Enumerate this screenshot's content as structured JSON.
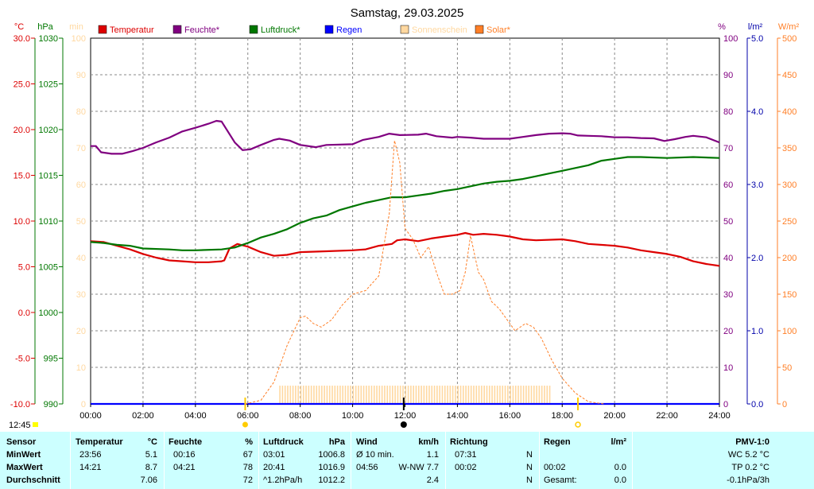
{
  "title": "Samstag, 29.03.2025",
  "current_time": "12:45",
  "legend": [
    {
      "label": "Temperatur",
      "color": "#dd0000"
    },
    {
      "label": "Feuchte*",
      "color": "#800080"
    },
    {
      "label": "Luftdruck*",
      "color": "#007700"
    },
    {
      "label": "Regen",
      "color": "#0000ff"
    },
    {
      "label": "Sonnenschein",
      "color": "#ffd8a0"
    },
    {
      "label": "Solar*",
      "color": "#ff7f27"
    }
  ],
  "axes": {
    "temp": {
      "unit": "°C",
      "color": "#dd0000",
      "ticks": [
        "30.0",
        "25.0",
        "20.0",
        "15.0",
        "10.0",
        "5.0",
        "0.0",
        "-5.0",
        "-10.0"
      ]
    },
    "pressure": {
      "unit": "hPa",
      "color": "#007700",
      "ticks": [
        "1030",
        "1025",
        "1020",
        "1015",
        "1010",
        "1005",
        "1000",
        "995",
        "990"
      ]
    },
    "sunshine": {
      "unit": "min",
      "color": "#ffd8a0",
      "ticks": [
        "100",
        "90",
        "80",
        "70",
        "60",
        "50",
        "40",
        "30",
        "20",
        "10",
        "0"
      ]
    },
    "humidity": {
      "unit": "%",
      "color": "#800080",
      "ticks": [
        "100",
        "90",
        "80",
        "70",
        "60",
        "50",
        "40",
        "30",
        "20",
        "10",
        "0"
      ]
    },
    "rain": {
      "unit": "l/m²",
      "color": "#0000aa",
      "ticks": [
        "5.0",
        "4.0",
        "3.0",
        "2.0",
        "1.0",
        "0.0"
      ]
    },
    "solar": {
      "unit": "W/m²",
      "color": "#ff7f27",
      "ticks": [
        "500",
        "450",
        "400",
        "350",
        "300",
        "250",
        "200",
        "150",
        "100",
        "50",
        "0"
      ]
    },
    "time_ticks": [
      "00:00",
      "02:00",
      "04:00",
      "06:00",
      "08:00",
      "10:00",
      "12:00",
      "14:00",
      "16:00",
      "18:00",
      "20:00",
      "22:00",
      "24:00"
    ]
  },
  "chart_data": {
    "type": "line",
    "title": "Samstag, 29.03.2025",
    "x_unit": "hours",
    "xlim": [
      0,
      24
    ],
    "sunrise_marker": 5.9,
    "noon_marker": 11.95,
    "sunset_marker": 18.6,
    "grid": true,
    "legend_position": "top",
    "series": [
      {
        "name": "Temperatur",
        "axis": "temp",
        "ylim": [
          -10,
          30
        ],
        "color": "#dd0000",
        "points": [
          [
            0,
            7.8
          ],
          [
            0.5,
            7.7
          ],
          [
            1,
            7.3
          ],
          [
            1.5,
            6.9
          ],
          [
            2,
            6.4
          ],
          [
            2.5,
            6.0
          ],
          [
            3,
            5.7
          ],
          [
            3.5,
            5.6
          ],
          [
            4,
            5.5
          ],
          [
            4.5,
            5.5
          ],
          [
            5,
            5.6
          ],
          [
            5.1,
            5.7
          ],
          [
            5.3,
            7.0
          ],
          [
            5.6,
            7.5
          ],
          [
            6,
            7.2
          ],
          [
            6.5,
            6.6
          ],
          [
            7,
            6.2
          ],
          [
            7.5,
            6.3
          ],
          [
            8,
            6.6
          ],
          [
            9,
            6.7
          ],
          [
            10,
            6.8
          ],
          [
            10.5,
            6.9
          ],
          [
            11,
            7.3
          ],
          [
            11.5,
            7.5
          ],
          [
            11.7,
            7.9
          ],
          [
            12,
            8.0
          ],
          [
            12.5,
            7.8
          ],
          [
            13,
            8.1
          ],
          [
            13.5,
            8.3
          ],
          [
            14,
            8.5
          ],
          [
            14.3,
            8.7
          ],
          [
            14.6,
            8.5
          ],
          [
            15,
            8.6
          ],
          [
            15.5,
            8.5
          ],
          [
            16,
            8.3
          ],
          [
            16.5,
            8.0
          ],
          [
            17,
            7.9
          ],
          [
            18,
            8.0
          ],
          [
            18.5,
            7.8
          ],
          [
            19,
            7.5
          ],
          [
            20,
            7.3
          ],
          [
            20.5,
            7.1
          ],
          [
            21,
            6.8
          ],
          [
            21.5,
            6.6
          ],
          [
            22,
            6.4
          ],
          [
            22.5,
            6.1
          ],
          [
            23,
            5.6
          ],
          [
            23.5,
            5.3
          ],
          [
            24,
            5.1
          ]
        ]
      },
      {
        "name": "Feuchte*",
        "axis": "humidity",
        "ylim": [
          0,
          100
        ],
        "color": "#800080",
        "points": [
          [
            0,
            70.5
          ],
          [
            0.2,
            70.5
          ],
          [
            0.4,
            68.8
          ],
          [
            0.8,
            68.4
          ],
          [
            1.2,
            68.4
          ],
          [
            1.6,
            69.1
          ],
          [
            2,
            70.0
          ],
          [
            2.5,
            71.5
          ],
          [
            3,
            72.8
          ],
          [
            3.5,
            74.5
          ],
          [
            4,
            75.5
          ],
          [
            4.5,
            76.6
          ],
          [
            4.8,
            77.4
          ],
          [
            5,
            77.2
          ],
          [
            5.5,
            71.5
          ],
          [
            5.8,
            69.4
          ],
          [
            6.1,
            69.6
          ],
          [
            6.5,
            70.8
          ],
          [
            7,
            72.2
          ],
          [
            7.2,
            72.5
          ],
          [
            7.6,
            72.0
          ],
          [
            8,
            70.8
          ],
          [
            8.6,
            70.2
          ],
          [
            9,
            70.8
          ],
          [
            10,
            71.0
          ],
          [
            10.4,
            72.2
          ],
          [
            11,
            73.0
          ],
          [
            11.4,
            73.9
          ],
          [
            11.8,
            73.5
          ],
          [
            12.5,
            73.6
          ],
          [
            12.8,
            73.9
          ],
          [
            13.2,
            73.2
          ],
          [
            13.8,
            72.8
          ],
          [
            14,
            73.0
          ],
          [
            14.5,
            72.8
          ],
          [
            15,
            72.5
          ],
          [
            15.5,
            72.5
          ],
          [
            16,
            72.5
          ],
          [
            16.5,
            73.0
          ],
          [
            17,
            73.5
          ],
          [
            17.5,
            73.9
          ],
          [
            18,
            74.0
          ],
          [
            18.3,
            73.9
          ],
          [
            18.6,
            73.4
          ],
          [
            19,
            73.3
          ],
          [
            19.5,
            73.2
          ],
          [
            20,
            72.9
          ],
          [
            20.5,
            72.9
          ],
          [
            21,
            72.7
          ],
          [
            21.5,
            72.6
          ],
          [
            21.9,
            71.9
          ],
          [
            22.3,
            72.4
          ],
          [
            22.7,
            73.0
          ],
          [
            23,
            73.3
          ],
          [
            23.5,
            72.9
          ],
          [
            24,
            71.5
          ]
        ]
      },
      {
        "name": "Luftdruck*",
        "axis": "pressure",
        "ylim": [
          990,
          1030
        ],
        "color": "#007700",
        "points": [
          [
            0,
            1007.7
          ],
          [
            0.5,
            1007.6
          ],
          [
            1,
            1007.4
          ],
          [
            1.5,
            1007.3
          ],
          [
            2,
            1007.0
          ],
          [
            3,
            1006.9
          ],
          [
            3.5,
            1006.8
          ],
          [
            4,
            1006.8
          ],
          [
            5,
            1006.9
          ],
          [
            5.5,
            1007.1
          ],
          [
            6,
            1007.6
          ],
          [
            6.5,
            1008.2
          ],
          [
            7,
            1008.6
          ],
          [
            7.5,
            1009.1
          ],
          [
            8,
            1009.8
          ],
          [
            8.5,
            1010.3
          ],
          [
            9,
            1010.6
          ],
          [
            9.5,
            1011.2
          ],
          [
            10,
            1011.6
          ],
          [
            10.5,
            1012.0
          ],
          [
            11,
            1012.3
          ],
          [
            11.5,
            1012.6
          ],
          [
            12,
            1012.6
          ],
          [
            12.5,
            1012.8
          ],
          [
            13,
            1013.0
          ],
          [
            13.5,
            1013.3
          ],
          [
            14,
            1013.5
          ],
          [
            14.5,
            1013.8
          ],
          [
            15,
            1014.1
          ],
          [
            15.5,
            1014.3
          ],
          [
            16,
            1014.4
          ],
          [
            16.5,
            1014.6
          ],
          [
            17,
            1014.9
          ],
          [
            17.5,
            1015.2
          ],
          [
            18,
            1015.5
          ],
          [
            18.5,
            1015.8
          ],
          [
            19,
            1016.1
          ],
          [
            19.5,
            1016.6
          ],
          [
            20,
            1016.8
          ],
          [
            20.5,
            1017.0
          ],
          [
            21,
            1017.0
          ],
          [
            22,
            1016.9
          ],
          [
            23,
            1017.0
          ],
          [
            24,
            1016.9
          ]
        ]
      },
      {
        "name": "Regen",
        "axis": "rain",
        "ylim": [
          0,
          5
        ],
        "color": "#0000ff",
        "points": [
          [
            0,
            0
          ],
          [
            24,
            0
          ]
        ]
      },
      {
        "name": "Sonnenschein",
        "axis": "sunshine",
        "ylim": [
          0,
          100
        ],
        "color": "#ffd8a0",
        "bars": {
          "from": 7.2,
          "to": 17.5,
          "value": 5
        }
      },
      {
        "name": "Solar*",
        "axis": "solar",
        "ylim": [
          0,
          500
        ],
        "color": "#ff7f27",
        "dashed": true,
        "points": [
          [
            5.9,
            0
          ],
          [
            6.5,
            5
          ],
          [
            7,
            30
          ],
          [
            7.5,
            80
          ],
          [
            8,
            118
          ],
          [
            8.2,
            120
          ],
          [
            8.5,
            110
          ],
          [
            8.8,
            105
          ],
          [
            9.2,
            115
          ],
          [
            9.6,
            135
          ],
          [
            10,
            150
          ],
          [
            10.5,
            155
          ],
          [
            11,
            175
          ],
          [
            11.4,
            260
          ],
          [
            11.6,
            360
          ],
          [
            11.8,
            330
          ],
          [
            12,
            240
          ],
          [
            12.3,
            225
          ],
          [
            12.6,
            200
          ],
          [
            12.9,
            215
          ],
          [
            13.2,
            180
          ],
          [
            13.5,
            150
          ],
          [
            13.8,
            150
          ],
          [
            14.1,
            155
          ],
          [
            14.3,
            180
          ],
          [
            14.5,
            230
          ],
          [
            14.8,
            180
          ],
          [
            15,
            170
          ],
          [
            15.3,
            140
          ],
          [
            15.6,
            130
          ],
          [
            16,
            110
          ],
          [
            16.2,
            100
          ],
          [
            16.6,
            110
          ],
          [
            16.9,
            105
          ],
          [
            17.2,
            90
          ],
          [
            17.6,
            60
          ],
          [
            18,
            35
          ],
          [
            18.5,
            15
          ],
          [
            19,
            3
          ],
          [
            19.6,
            0
          ]
        ]
      }
    ]
  },
  "stats": {
    "headers": {
      "sensor": "Sensor",
      "temp": "Temperatur",
      "temp_unit": "°C",
      "hum": "Feuchte",
      "hum_unit": "%",
      "press": "Luftdruck",
      "press_unit": "hPa",
      "wind": "Wind",
      "wind_unit": "km/h",
      "dir": "Richtung",
      "rain": "Regen",
      "rain_unit": "l/m²",
      "pmv": "PMV-1:0"
    },
    "rows": [
      {
        "label": "MinWert",
        "temp_time": "23:56",
        "temp_val": "5.1",
        "hum_time": "00:16",
        "hum_val": "67",
        "press_time": "03:01",
        "press_val": "1006.8",
        "wind_time": "Ø 10 min.",
        "wind_val": "1.1",
        "dir_time": "07:31",
        "dir_val": "N",
        "rain_time": "",
        "rain_val": "",
        "extra": "WC 5.2 °C"
      },
      {
        "label": "MaxWert",
        "temp_time": "14:21",
        "temp_val": "8.7",
        "hum_time": "04:21",
        "hum_val": "78",
        "press_time": "20:41",
        "press_val": "1016.9",
        "wind_time": "04:56",
        "wind_val": "W-NW 7.7",
        "dir_time": "00:02",
        "dir_val": "N",
        "rain_time": "00:02",
        "rain_val": "0.0",
        "extra": "TP 0.2 °C"
      },
      {
        "label": "Durchschnitt",
        "temp_time": "",
        "temp_val": "7.06",
        "hum_time": "",
        "hum_val": "72",
        "press_time": "^1.2hPa/h",
        "press_val": "1012.2",
        "wind_time": "",
        "wind_val": "2.4",
        "dir_time": "",
        "dir_val": "N",
        "rain_time": "Gesamt:",
        "rain_val": "0.0",
        "extra": "-0.1hPa/3h"
      }
    ]
  }
}
